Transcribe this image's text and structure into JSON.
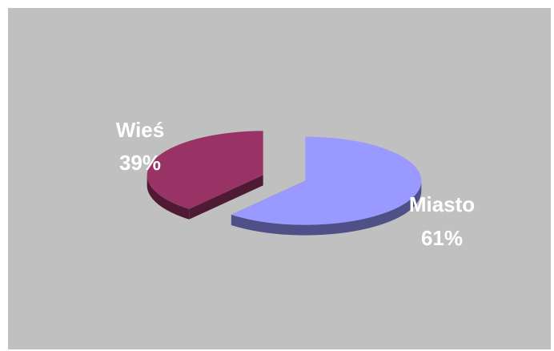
{
  "chart_data": {
    "type": "pie",
    "style": "3d-exploded",
    "slices": [
      {
        "name": "Miasto",
        "value": 61,
        "percent_label": "61%",
        "color": "#9999ff",
        "side_color": "#505088"
      },
      {
        "name": "Wieś",
        "value": 39,
        "percent_label": "39%",
        "color": "#993366",
        "side_color": "#4e1a34"
      }
    ],
    "background_color": "#c0c0c0",
    "legend": "none",
    "data_labels": "category-and-percent"
  }
}
